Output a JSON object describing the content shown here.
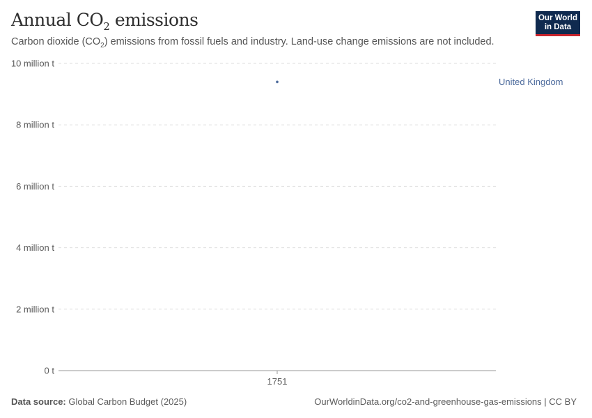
{
  "header": {
    "title_main": "Annual CO",
    "title_sub": "2",
    "title_end": " emissions",
    "subtitle_a": "Carbon dioxide (CO",
    "subtitle_sub": "2",
    "subtitle_b": ") emissions from fossil fuels and industry. Land-use change emissions are not included.",
    "logo": "Our World in Data"
  },
  "chart_data": {
    "type": "scatter",
    "x": [
      1751
    ],
    "series": [
      {
        "name": "United Kingdom",
        "values": [
          9.4
        ],
        "color": "#4c6a9c"
      }
    ],
    "ylim": [
      0,
      10
    ],
    "yticks": [
      0,
      2,
      4,
      6,
      8,
      10
    ],
    "ytick_labels": [
      "0 t",
      "2 million t",
      "4 million t",
      "6 million t",
      "8 million t",
      "10 million t"
    ],
    "xtick_labels": [
      "1751"
    ],
    "grid": true,
    "legend": "right"
  },
  "footer": {
    "source_label": "Data source:",
    "source": " Global Carbon Budget (2025)",
    "url": "OurWorldinData.org/co2-and-greenhouse-gas-emissions | CC BY"
  }
}
